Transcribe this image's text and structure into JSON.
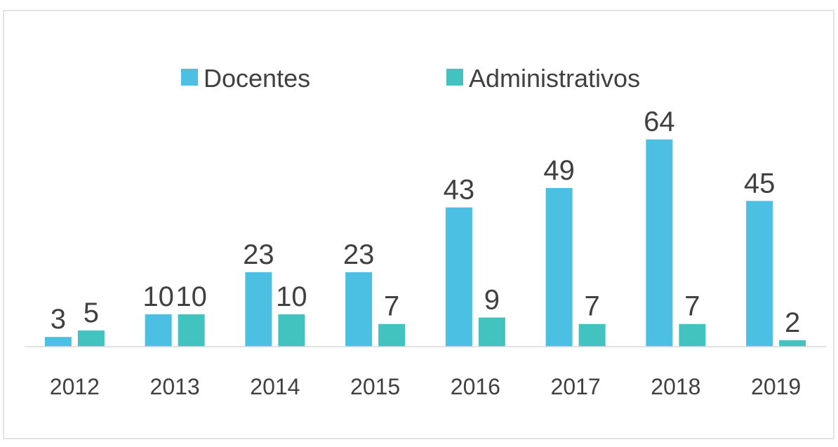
{
  "chart_data": {
    "type": "bar",
    "categories": [
      "2012",
      "2013",
      "2014",
      "2015",
      "2016",
      "2017",
      "2018",
      "2019"
    ],
    "series": [
      {
        "name": "Docentes",
        "color": "#4bc0e2",
        "values": [
          3,
          10,
          23,
          23,
          43,
          49,
          64,
          45
        ]
      },
      {
        "name": "Administrativos",
        "color": "#43c3c0",
        "values": [
          5,
          10,
          10,
          7,
          9,
          7,
          7,
          2
        ]
      }
    ],
    "ylim": [
      0,
      70
    ],
    "legend": "top"
  }
}
